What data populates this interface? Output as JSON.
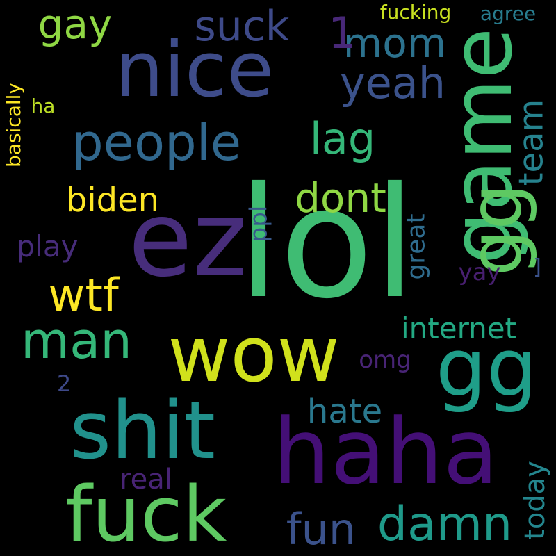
{
  "background": "#000000",
  "words": [
    {
      "text": "lol",
      "color": "#3fbc73"
    },
    {
      "text": "ez",
      "color": "#472d7b"
    },
    {
      "text": "nice",
      "color": "#3e4c8a"
    },
    {
      "text": "game",
      "color": "#3fbc73"
    },
    {
      "text": "wow",
      "color": "#d0e11c"
    },
    {
      "text": "haha",
      "color": "#440f76"
    },
    {
      "text": "shit",
      "color": "#21918c"
    },
    {
      "text": "fuck",
      "color": "#5ec962"
    },
    {
      "text": "gg",
      "color": "#1f9e89"
    },
    {
      "text": "gg",
      "color": "#5ec962"
    },
    {
      "text": "people",
      "color": "#31688e"
    },
    {
      "text": "man",
      "color": "#35b779"
    },
    {
      "text": "wtf",
      "color": "#fde725"
    },
    {
      "text": "damn",
      "color": "#1f9a8a"
    },
    {
      "text": "fun",
      "color": "#3b528b"
    },
    {
      "text": "yeah",
      "color": "#3b528b"
    },
    {
      "text": "lag",
      "color": "#35b779"
    },
    {
      "text": "dont",
      "color": "#8fd744"
    },
    {
      "text": "gay",
      "color": "#8fd744"
    },
    {
      "text": "suck",
      "color": "#3e4a89"
    },
    {
      "text": "mom",
      "color": "#2c728e"
    },
    {
      "text": "1",
      "color": "#482878"
    },
    {
      "text": "biden",
      "color": "#fde725"
    },
    {
      "text": "team",
      "color": "#26828e"
    },
    {
      "text": "hate",
      "color": "#2a788e"
    },
    {
      "text": "internet",
      "color": "#23a983"
    },
    {
      "text": "today",
      "color": "#24868e"
    },
    {
      "text": "play",
      "color": "#472c7a"
    },
    {
      "text": "real",
      "color": "#482475"
    },
    {
      "text": "great",
      "color": "#2f6c8e"
    },
    {
      "text": "ppl",
      "color": "#38598c"
    },
    {
      "text": "omg",
      "color": "#482475"
    },
    {
      "text": "yay",
      "color": "#481f70"
    },
    {
      "text": "fucking",
      "color": "#c8e020"
    },
    {
      "text": "agree",
      "color": "#287c8e"
    },
    {
      "text": "basically",
      "color": "#fde725"
    },
    {
      "text": "ha",
      "color": "#bddf26"
    },
    {
      "text": "2",
      "color": "#3e4989"
    },
    {
      "text": "]",
      "color": "#3b528b"
    }
  ]
}
